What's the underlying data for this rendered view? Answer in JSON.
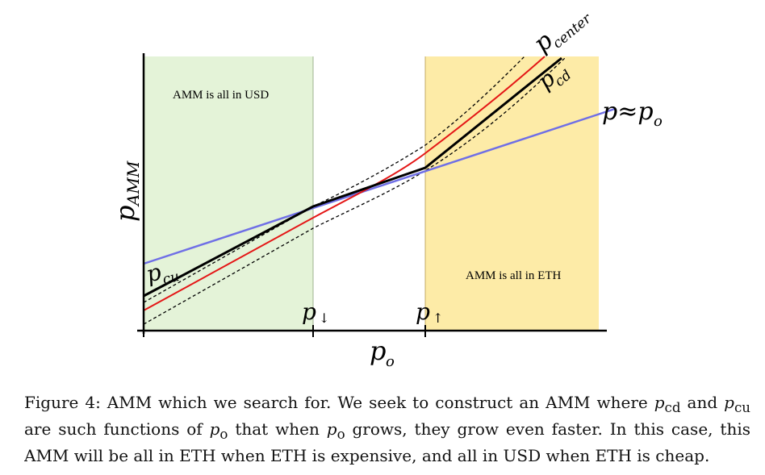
{
  "figure": {
    "region_left_label": "AMM is all in USD",
    "region_right_label": "AMM is all in ETH",
    "labels": {
      "p_center": "p",
      "p_center_sub": "center",
      "p_cd": "p",
      "p_cd_sub": "cd",
      "p_approx_po": "p≈p",
      "p_approx_po_sub": "o",
      "p_amm": "p",
      "p_amm_sub": "AMM",
      "p_cu": "p",
      "p_cu_sub": "cu",
      "p_down": "p",
      "p_down_sub": "↓",
      "p_up": "p",
      "p_up_sub": "↑",
      "p_o": "p",
      "p_o_sub": "o"
    },
    "colors": {
      "left_region": "#e4f3d8",
      "right_region": "#fdeba7",
      "p_center_line": "#e41616",
      "p_approx_line": "#6f6fe6",
      "p_cd_line": "#000000"
    }
  },
  "caption": {
    "prefix": "Figure 4: AMM which we search for. We seek to construct an AMM where ",
    "v1": "p",
    "v1_sub": "cd",
    "mid1": " and ",
    "v2": "p",
    "v2_sub": "cu",
    "mid2": " are such functions of ",
    "v3": "p",
    "v3_sub": "o",
    "mid3": " that when ",
    "v4": "p",
    "v4_sub": "o",
    "mid4": " grows, they grow even faster. In this case, this AMM will be all in ETH when ETH is expensive, and all in USD when ETH is cheap."
  }
}
